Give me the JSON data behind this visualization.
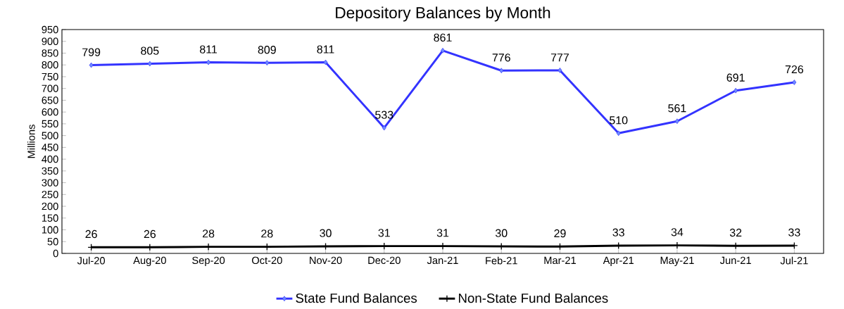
{
  "chart_data": {
    "type": "line",
    "title": "Depository Balances by Month",
    "ylabel": "Millions",
    "categories": [
      "Jul-20",
      "Aug-20",
      "Sep-20",
      "Oct-20",
      "Nov-20",
      "Dec-20",
      "Jan-21",
      "Feb-21",
      "Mar-21",
      "Apr-21",
      "May-21",
      "Jun-21",
      "Jul-21"
    ],
    "series": [
      {
        "name": "State Fund Balances",
        "color": "#3333ff",
        "marker": "diamond",
        "values": [
          799,
          805,
          811,
          809,
          811,
          533,
          861,
          776,
          777,
          510,
          561,
          691,
          726
        ]
      },
      {
        "name": "Non-State Fund Balances",
        "color": "#000000",
        "marker": "cross",
        "values": [
          26,
          26,
          28,
          28,
          30,
          31,
          31,
          30,
          29,
          33,
          34,
          32,
          33
        ]
      }
    ],
    "ylim": [
      0,
      950
    ],
    "yticks": [
      0,
      50,
      100,
      150,
      200,
      250,
      300,
      350,
      400,
      450,
      500,
      550,
      600,
      650,
      700,
      750,
      800,
      850,
      900,
      950
    ],
    "data_labels": true,
    "legend": "bottom",
    "line_style": "solid"
  }
}
